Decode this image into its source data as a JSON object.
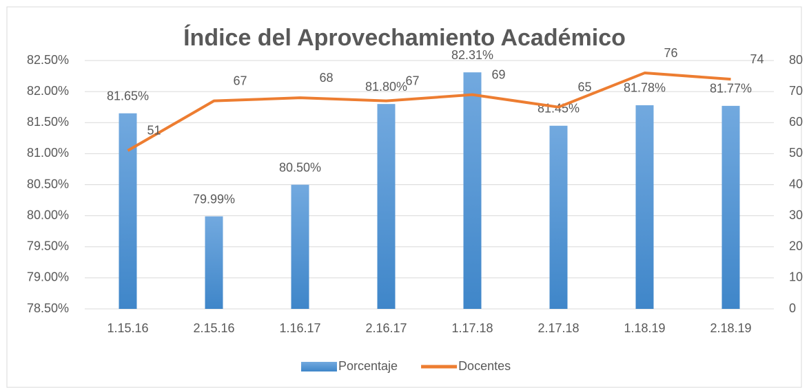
{
  "chart_data": {
    "type": "bar",
    "title": "Índice del Aprovechamiento Académico",
    "categories": [
      "1.15.16",
      "2.15.16",
      "1.16.17",
      "2.16.17",
      "1.17.18",
      "2.17.18",
      "1.18.19",
      "2.18.19"
    ],
    "series": [
      {
        "name": "Porcentaje",
        "type": "bar",
        "color": "#5b9bd5",
        "values": [
          81.65,
          79.99,
          80.5,
          81.8,
          82.31,
          81.45,
          81.78,
          81.77
        ],
        "value_labels": [
          "81.65%",
          "79.99%",
          "80.50%",
          "81.80%",
          "82.31%",
          "81.45%",
          "81.78%",
          "81.77%"
        ]
      },
      {
        "name": "Docentes",
        "type": "line",
        "axis": "y2",
        "color": "#ed7d31",
        "values": [
          51,
          67,
          68,
          67,
          69,
          65,
          76,
          74
        ]
      }
    ],
    "ylim": [
      78.5,
      82.5
    ],
    "yticks": [
      {
        "value": 78.5,
        "label": "78.50%"
      },
      {
        "value": 79,
        "label": "79.00%"
      },
      {
        "value": 79.5,
        "label": "79.50%"
      },
      {
        "value": 80,
        "label": "80.00%"
      },
      {
        "value": 80.5,
        "label": "80.50%"
      },
      {
        "value": 81,
        "label": "81.00%"
      },
      {
        "value": 81.5,
        "label": "81.50%"
      },
      {
        "value": 82,
        "label": "82.00%"
      },
      {
        "value": 82.5,
        "label": "82.50%"
      }
    ],
    "y2lim": [
      0,
      80
    ],
    "y2ticks": [
      0,
      10,
      20,
      30,
      40,
      50,
      60,
      70,
      80
    ],
    "grid": true,
    "legend": "bottom"
  }
}
